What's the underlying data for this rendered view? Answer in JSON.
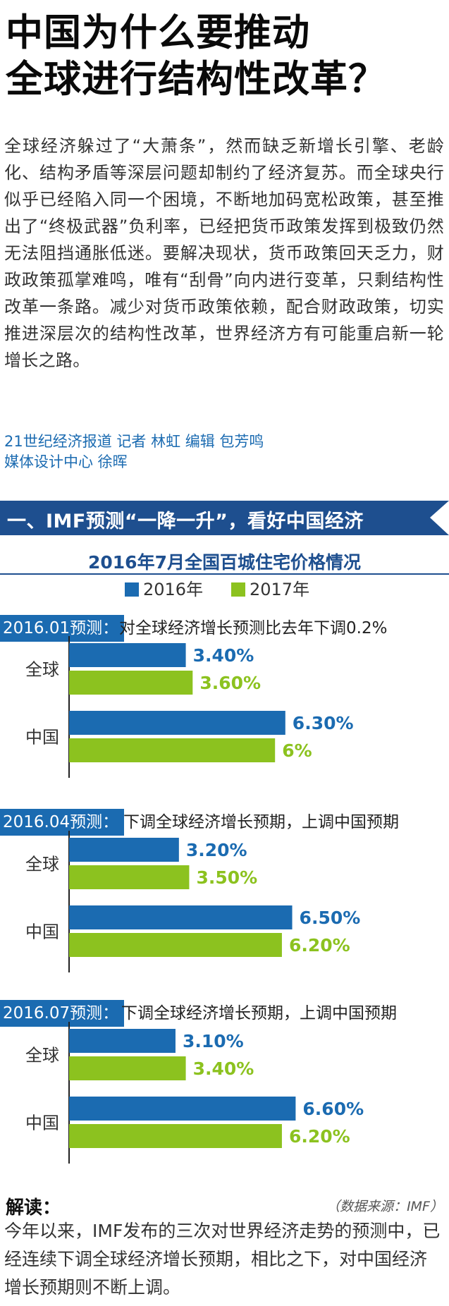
{
  "headline": {
    "line1": "中国为什么要推动",
    "line2": "全球进行结构性改革？"
  },
  "intro": "全球经济躲过了“大萧条”，然而缺乏新增长引擎、老龄化、结构矛盾等深层问题却制约了经济复苏。而全球央行似乎已经陷入同一个困境，不断地加码宽松政策，甚至推出了“终极武器”负利率，已经把货币政策发挥到极致仍然无法阻挡通胀低迷。要解决现状，货币政策回天乏力，财政政策孤掌难鸣，唯有“刮骨”向内进行变革，只剩结构性改革一条路。减少对货币政策依赖，配合财政政策，切实推进深层次的结构性改革，世界经济方有可能重启新一轮增长之路。",
  "credits": {
    "line1": "21世纪经济报道 记者 林虹 编辑 包芳鸣",
    "line2": "媒体设计中心 徐晖"
  },
  "section": {
    "title": "一、IMF预测“一降一升”，看好中国经济"
  },
  "colors": {
    "series2016": "#1b6bb1",
    "series2017": "#8cc21f",
    "banner": "#1e4f8f"
  },
  "chart_data": {
    "type": "bar",
    "orientation": "horizontal",
    "title": "2016年7月全国百城住宅价格情况",
    "legend": [
      "2016年",
      "2017年"
    ],
    "unit": "%",
    "panels": [
      {
        "tag": "2016.01预测：",
        "description": "对全球经济增长预测比去年下调0.2%",
        "categories": [
          "全球",
          "中国"
        ],
        "series": [
          {
            "name": "2016年",
            "values": [
              3.4,
              6.3
            ],
            "labels": [
              "3.40%",
              "6.30%"
            ]
          },
          {
            "name": "2017年",
            "values": [
              3.6,
              6.0
            ],
            "labels": [
              "3.60%",
              "6%"
            ]
          }
        ]
      },
      {
        "tag": "2016.04预测：",
        "description": "下调全球经济增长预期，上调中国预期",
        "categories": [
          "全球",
          "中国"
        ],
        "series": [
          {
            "name": "2016年",
            "values": [
              3.2,
              6.5
            ],
            "labels": [
              "3.20%",
              "6.50%"
            ]
          },
          {
            "name": "2017年",
            "values": [
              3.5,
              6.2
            ],
            "labels": [
              "3.50%",
              "6.20%"
            ]
          }
        ]
      },
      {
        "tag": "2016.07预测：",
        "description": "下调全球经济增长预期，上调中国预期",
        "categories": [
          "全球",
          "中国"
        ],
        "series": [
          {
            "name": "2016年",
            "values": [
              3.1,
              6.6
            ],
            "labels": [
              "3.10%",
              "6.60%"
            ]
          },
          {
            "name": "2017年",
            "values": [
              3.4,
              6.2
            ],
            "labels": [
              "3.40%",
              "6.20%"
            ]
          }
        ]
      }
    ]
  },
  "reading": {
    "label": "解读：",
    "source": "（数据来源：IMF）",
    "text": "今年以来，IMF发布的三次对世界经济走势的预测中，已经连续下调全球经济增长预期，相比之下，对中国经济增长预期则不断上调。"
  }
}
